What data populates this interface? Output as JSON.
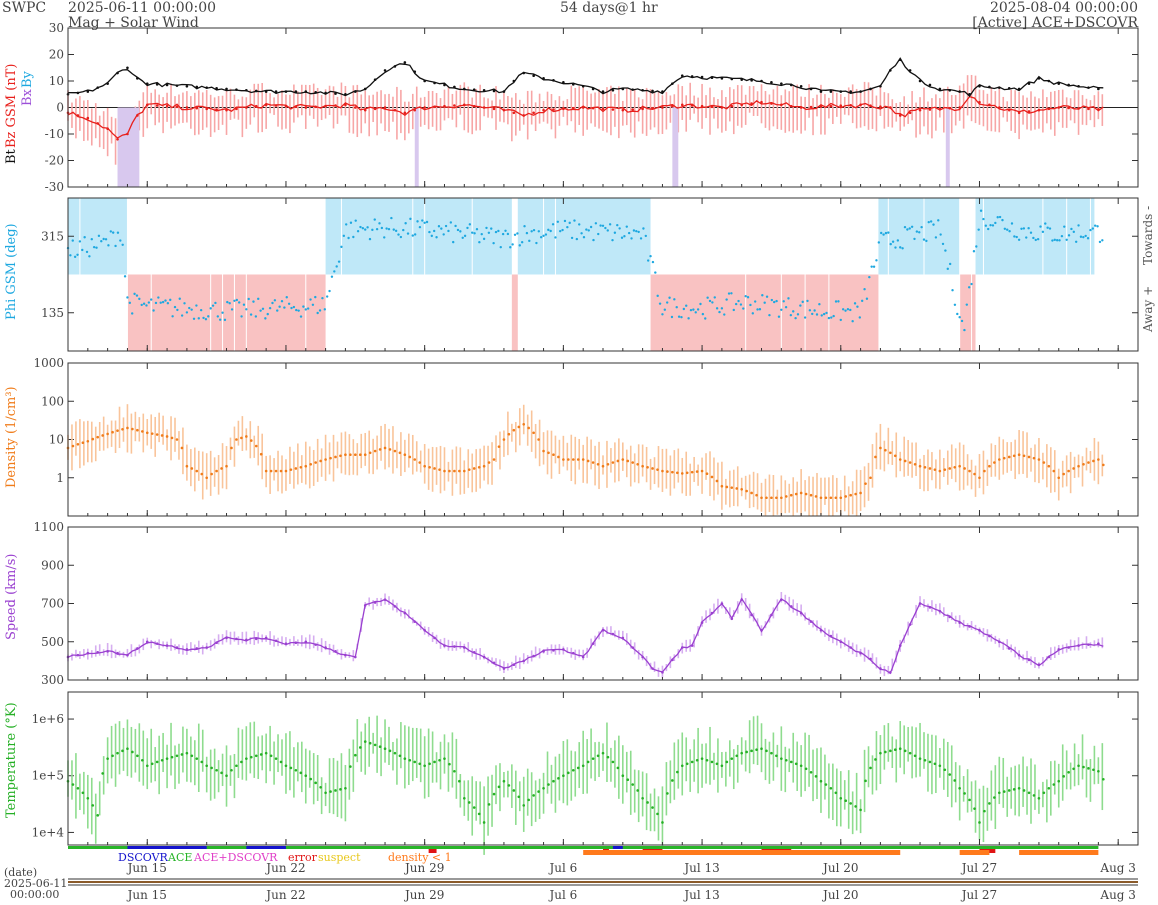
{
  "header": {
    "org": "SWPC",
    "start": "2025-06-11 00:00:00",
    "subtitle": "Mag + Solar Wind",
    "span": "54 days@1 hr",
    "end": "2025-08-04 00:00:00",
    "source": "[Active] ACE+DSCOVR"
  },
  "colors": {
    "bt": "#111111",
    "bz": "#e8201c",
    "bz_fill": "#f7a6a6",
    "bx": "#9c50d8",
    "bx_fill": "#d8c8ee",
    "by": "#1ea8e0",
    "phi_towards": "#bfe8f8",
    "phi_away": "#f9c2c2",
    "density": "#f07c1a",
    "density_fill": "#f9c49a",
    "speed": "#9a40d0",
    "speed_fill": "#d6aef0",
    "temp": "#26b026",
    "temp_fill": "#8edc8e",
    "dscovr": "#1414cc",
    "ace": "#28b428",
    "ace_dscovr": "#e040c8",
    "error": "#e01414",
    "suspect": "#e8c81c",
    "density_lt1": "#ff7a1c"
  },
  "axis_labels": {
    "mag_bt": "Bt",
    "mag_bz": "Bz GSM (nT)",
    "mag_bx": "Bx",
    "mag_by": "By",
    "phi": "Phi GSM (deg)",
    "towards": "Towards -",
    "away": "Away +",
    "density": "Density (1/cm³)",
    "speed": "Speed (km/s)",
    "temp": "Temperature (°K)"
  },
  "legend": {
    "dscovr": "DSCOVR",
    "ace": "ACE",
    "ace_dscovr": "ACE+DSCOVR",
    "error": "error",
    "suspect": "suspect",
    "density_lt1": "density < 1"
  },
  "footer": {
    "date_label": "(date)",
    "date": "2025-06-11",
    "time": "00:00:00"
  },
  "chart_data": [
    {
      "type": "line",
      "title": "",
      "ylabel": "Bt, Bz GSM (nT), Bx, By",
      "ylim": [
        -30,
        30
      ],
      "yticks": [
        "30",
        "20",
        "10",
        "0",
        "-10",
        "-20",
        "-30"
      ],
      "x_range_days": [
        0,
        54
      ],
      "xticks": [
        "Jun 15",
        "Jun 22",
        "Jun 29",
        "Jul 6",
        "Jul 13",
        "Jul 20",
        "Jul 27",
        "Aug 3"
      ],
      "x_tick_days": [
        4,
        11,
        18,
        25,
        32,
        39,
        46,
        53
      ],
      "series": [
        {
          "name": "Bt",
          "x": [
            0,
            1,
            2,
            2.5,
            3,
            3.5,
            4,
            6,
            8,
            10,
            12,
            14,
            15,
            16,
            17,
            18,
            20,
            22,
            22.5,
            23,
            24,
            26,
            27,
            28,
            30,
            30.5,
            31,
            33,
            35,
            37,
            38,
            40,
            41,
            41.5,
            42,
            43,
            44,
            45,
            45.5,
            46,
            48,
            49,
            50,
            52,
            53
          ],
          "y": [
            5,
            6,
            9,
            13,
            15,
            11,
            9,
            8,
            7,
            6,
            6,
            5,
            7,
            14,
            17,
            10,
            7,
            6,
            10,
            13,
            11,
            8,
            6,
            7,
            6,
            9,
            12,
            11,
            10,
            8,
            6,
            6,
            8,
            14,
            18,
            10,
            7,
            6,
            5,
            8,
            7,
            11,
            9,
            7,
            6
          ]
        },
        {
          "name": "Bz GSM",
          "x": [
            0,
            1,
            2,
            2.5,
            3,
            3.5,
            4,
            6,
            8,
            10,
            12,
            14,
            15,
            16,
            17,
            18,
            20,
            22,
            23,
            24,
            26,
            28,
            30,
            31,
            33,
            35,
            37,
            40,
            41.5,
            42,
            43,
            45,
            45.5,
            46,
            48,
            50,
            53
          ],
          "y": [
            -2,
            -4,
            -8,
            -12,
            -10,
            -3,
            1,
            0,
            -1,
            1,
            0,
            1,
            -1,
            0,
            -2,
            0,
            1,
            -1,
            -3,
            -1,
            0,
            -1,
            0,
            1,
            0,
            2,
            0,
            1,
            0,
            -3,
            -1,
            0,
            5,
            2,
            -2,
            0,
            -1
          ]
        },
        {
          "name": "Bx",
          "x": [],
          "y": []
        },
        {
          "name": "By",
          "x": [],
          "y": []
        }
      ]
    },
    {
      "type": "scatter",
      "title": "",
      "ylabel": "Phi GSM (deg)",
      "ylim": [
        45,
        405
      ],
      "yticks": [
        "315",
        "135"
      ],
      "side_labels": [
        "Towards -",
        "Away +"
      ],
      "sectors": [
        {
          "start": 0,
          "end": 3,
          "sector": "towards"
        },
        {
          "start": 3,
          "end": 13,
          "sector": "away"
        },
        {
          "start": 13,
          "end": 22.4,
          "sector": "towards"
        },
        {
          "start": 22.4,
          "end": 22.7,
          "sector": "away"
        },
        {
          "start": 22.7,
          "end": 29.4,
          "sector": "towards"
        },
        {
          "start": 29.4,
          "end": 40.9,
          "sector": "away"
        },
        {
          "start": 40.9,
          "end": 45,
          "sector": "towards"
        },
        {
          "start": 45,
          "end": 45.8,
          "sector": "away"
        },
        {
          "start": 45.8,
          "end": 51.8,
          "sector": "towards"
        }
      ],
      "series": [
        {
          "name": "Phi",
          "x": [
            0,
            1,
            2,
            2.7,
            3,
            4,
            6,
            8,
            10,
            12,
            13,
            14,
            16,
            18,
            20,
            22,
            23,
            25,
            27,
            29,
            30,
            32,
            34,
            36,
            38,
            40,
            41,
            42,
            43,
            44,
            45.2,
            46,
            47,
            48,
            50,
            51.5
          ],
          "y": [
            280,
            290,
            300,
            330,
            160,
            150,
            145,
            140,
            145,
            150,
            155,
            330,
            335,
            330,
            320,
            310,
            320,
            330,
            325,
            320,
            150,
            145,
            160,
            150,
            140,
            135,
            300,
            310,
            320,
            330,
            90,
            360,
            350,
            330,
            320,
            325
          ]
        }
      ]
    },
    {
      "type": "line",
      "title": "",
      "ylabel": "Density (1/cm³)",
      "yscale": "log",
      "ylim": [
        0.1,
        1000
      ],
      "yticks": [
        "1000",
        "100",
        "10",
        "1"
      ],
      "series": [
        {
          "name": "Density",
          "x": [
            0,
            1,
            2,
            3,
            4,
            5,
            5.5,
            6,
            7,
            8,
            8.5,
            9,
            10,
            11,
            12,
            13,
            14,
            15,
            16,
            17,
            18,
            19,
            20,
            21,
            21.5,
            22,
            23,
            24,
            25,
            26,
            27,
            28,
            29,
            30,
            31,
            32,
            33,
            34,
            35,
            36,
            37,
            38,
            39,
            40,
            40.5,
            41,
            42,
            43,
            44,
            45,
            46,
            47,
            48,
            49,
            50,
            51,
            52,
            52.3
          ],
          "y": [
            6,
            9,
            14,
            20,
            15,
            12,
            10,
            2,
            1,
            2,
            10,
            12,
            1.5,
            1.5,
            2,
            3,
            4,
            4,
            6,
            4,
            2,
            1.5,
            1.5,
            2,
            3,
            10,
            25,
            5,
            3,
            3,
            2,
            3,
            2,
            1.5,
            1.3,
            1.5,
            0.6,
            0.5,
            0.3,
            0.3,
            0.4,
            0.3,
            0.3,
            0.4,
            1,
            6,
            3,
            2,
            1.5,
            2,
            1,
            3,
            4,
            3,
            1,
            2,
            3,
            2
          ]
        }
      ]
    },
    {
      "type": "line",
      "title": "",
      "ylabel": "Speed (km/s)",
      "ylim": [
        300,
        1100
      ],
      "yticks": [
        "1100",
        "900",
        "700",
        "500",
        "300"
      ],
      "series": [
        {
          "name": "Speed",
          "x": [
            0,
            1,
            2,
            3,
            4,
            5,
            6,
            7,
            8,
            9,
            10,
            11,
            12,
            13,
            14,
            14.5,
            15,
            16,
            17,
            18,
            19,
            20,
            21,
            22,
            23,
            24,
            25,
            26,
            27,
            28,
            29,
            29.5,
            30,
            31,
            31.5,
            32,
            33,
            33.5,
            34,
            35,
            36,
            37,
            38,
            39,
            40,
            40.5,
            41,
            41.5,
            42,
            43,
            44,
            45,
            46,
            47,
            48,
            49,
            50,
            51,
            52,
            52.3
          ],
          "y": [
            420,
            440,
            450,
            430,
            500,
            480,
            460,
            470,
            520,
            510,
            520,
            490,
            500,
            470,
            430,
            420,
            690,
            720,
            650,
            560,
            480,
            470,
            420,
            360,
            400,
            450,
            460,
            420,
            560,
            520,
            420,
            360,
            340,
            470,
            480,
            600,
            700,
            620,
            720,
            560,
            720,
            650,
            560,
            500,
            440,
            410,
            360,
            340,
            480,
            700,
            660,
            600,
            560,
            500,
            430,
            380,
            460,
            480,
            490,
            480
          ]
        }
      ]
    },
    {
      "type": "line",
      "title": "",
      "ylabel": "Temperature (°K)",
      "yscale": "log",
      "ylim": [
        6000,
        3000000
      ],
      "yticks": [
        "1e+6",
        "1e+5",
        "1e+4"
      ],
      "series": [
        {
          "name": "Temperature",
          "x": [
            0,
            1,
            1.5,
            2,
            3,
            4,
            5,
            6,
            7,
            8,
            9,
            10,
            11,
            12,
            13,
            14,
            15,
            16,
            17,
            18,
            19,
            20,
            21,
            22,
            23,
            24,
            25,
            26,
            27,
            28,
            29,
            30,
            31,
            32,
            33,
            34,
            35,
            36,
            37,
            38,
            39,
            40,
            41,
            42,
            43,
            44,
            45,
            46,
            47,
            48,
            49,
            50,
            51,
            52,
            52.3
          ],
          "y": [
            80000,
            40000,
            20000,
            200000,
            300000,
            150000,
            200000,
            250000,
            150000,
            100000,
            200000,
            250000,
            150000,
            100000,
            50000,
            60000,
            400000,
            300000,
            200000,
            150000,
            200000,
            40000,
            15000,
            80000,
            30000,
            60000,
            100000,
            150000,
            250000,
            100000,
            40000,
            15000,
            150000,
            200000,
            150000,
            250000,
            300000,
            200000,
            150000,
            80000,
            40000,
            25000,
            250000,
            300000,
            200000,
            150000,
            60000,
            15000,
            50000,
            60000,
            40000,
            80000,
            150000,
            120000,
            80000
          ]
        }
      ]
    },
    {
      "type": "table",
      "title": "",
      "note": "source/quality bar",
      "series": [
        {
          "name": "ACE",
          "segments": [
            [
              0,
              52
            ]
          ]
        },
        {
          "name": "DSCOVR",
          "segments": [
            [
              3,
              7
            ],
            [
              9,
              11
            ],
            [
              27.5,
              28
            ]
          ]
        },
        {
          "name": "error",
          "segments": [
            [
              18.2,
              18.6
            ],
            [
              27,
              27.3
            ],
            [
              29,
              30
            ],
            [
              35,
              36.5
            ],
            [
              46,
              46.8
            ]
          ]
        },
        {
          "name": "density < 1",
          "segments": [
            [
              26,
              42
            ],
            [
              45,
              46.5
            ],
            [
              48,
              52
            ]
          ]
        }
      ]
    }
  ]
}
